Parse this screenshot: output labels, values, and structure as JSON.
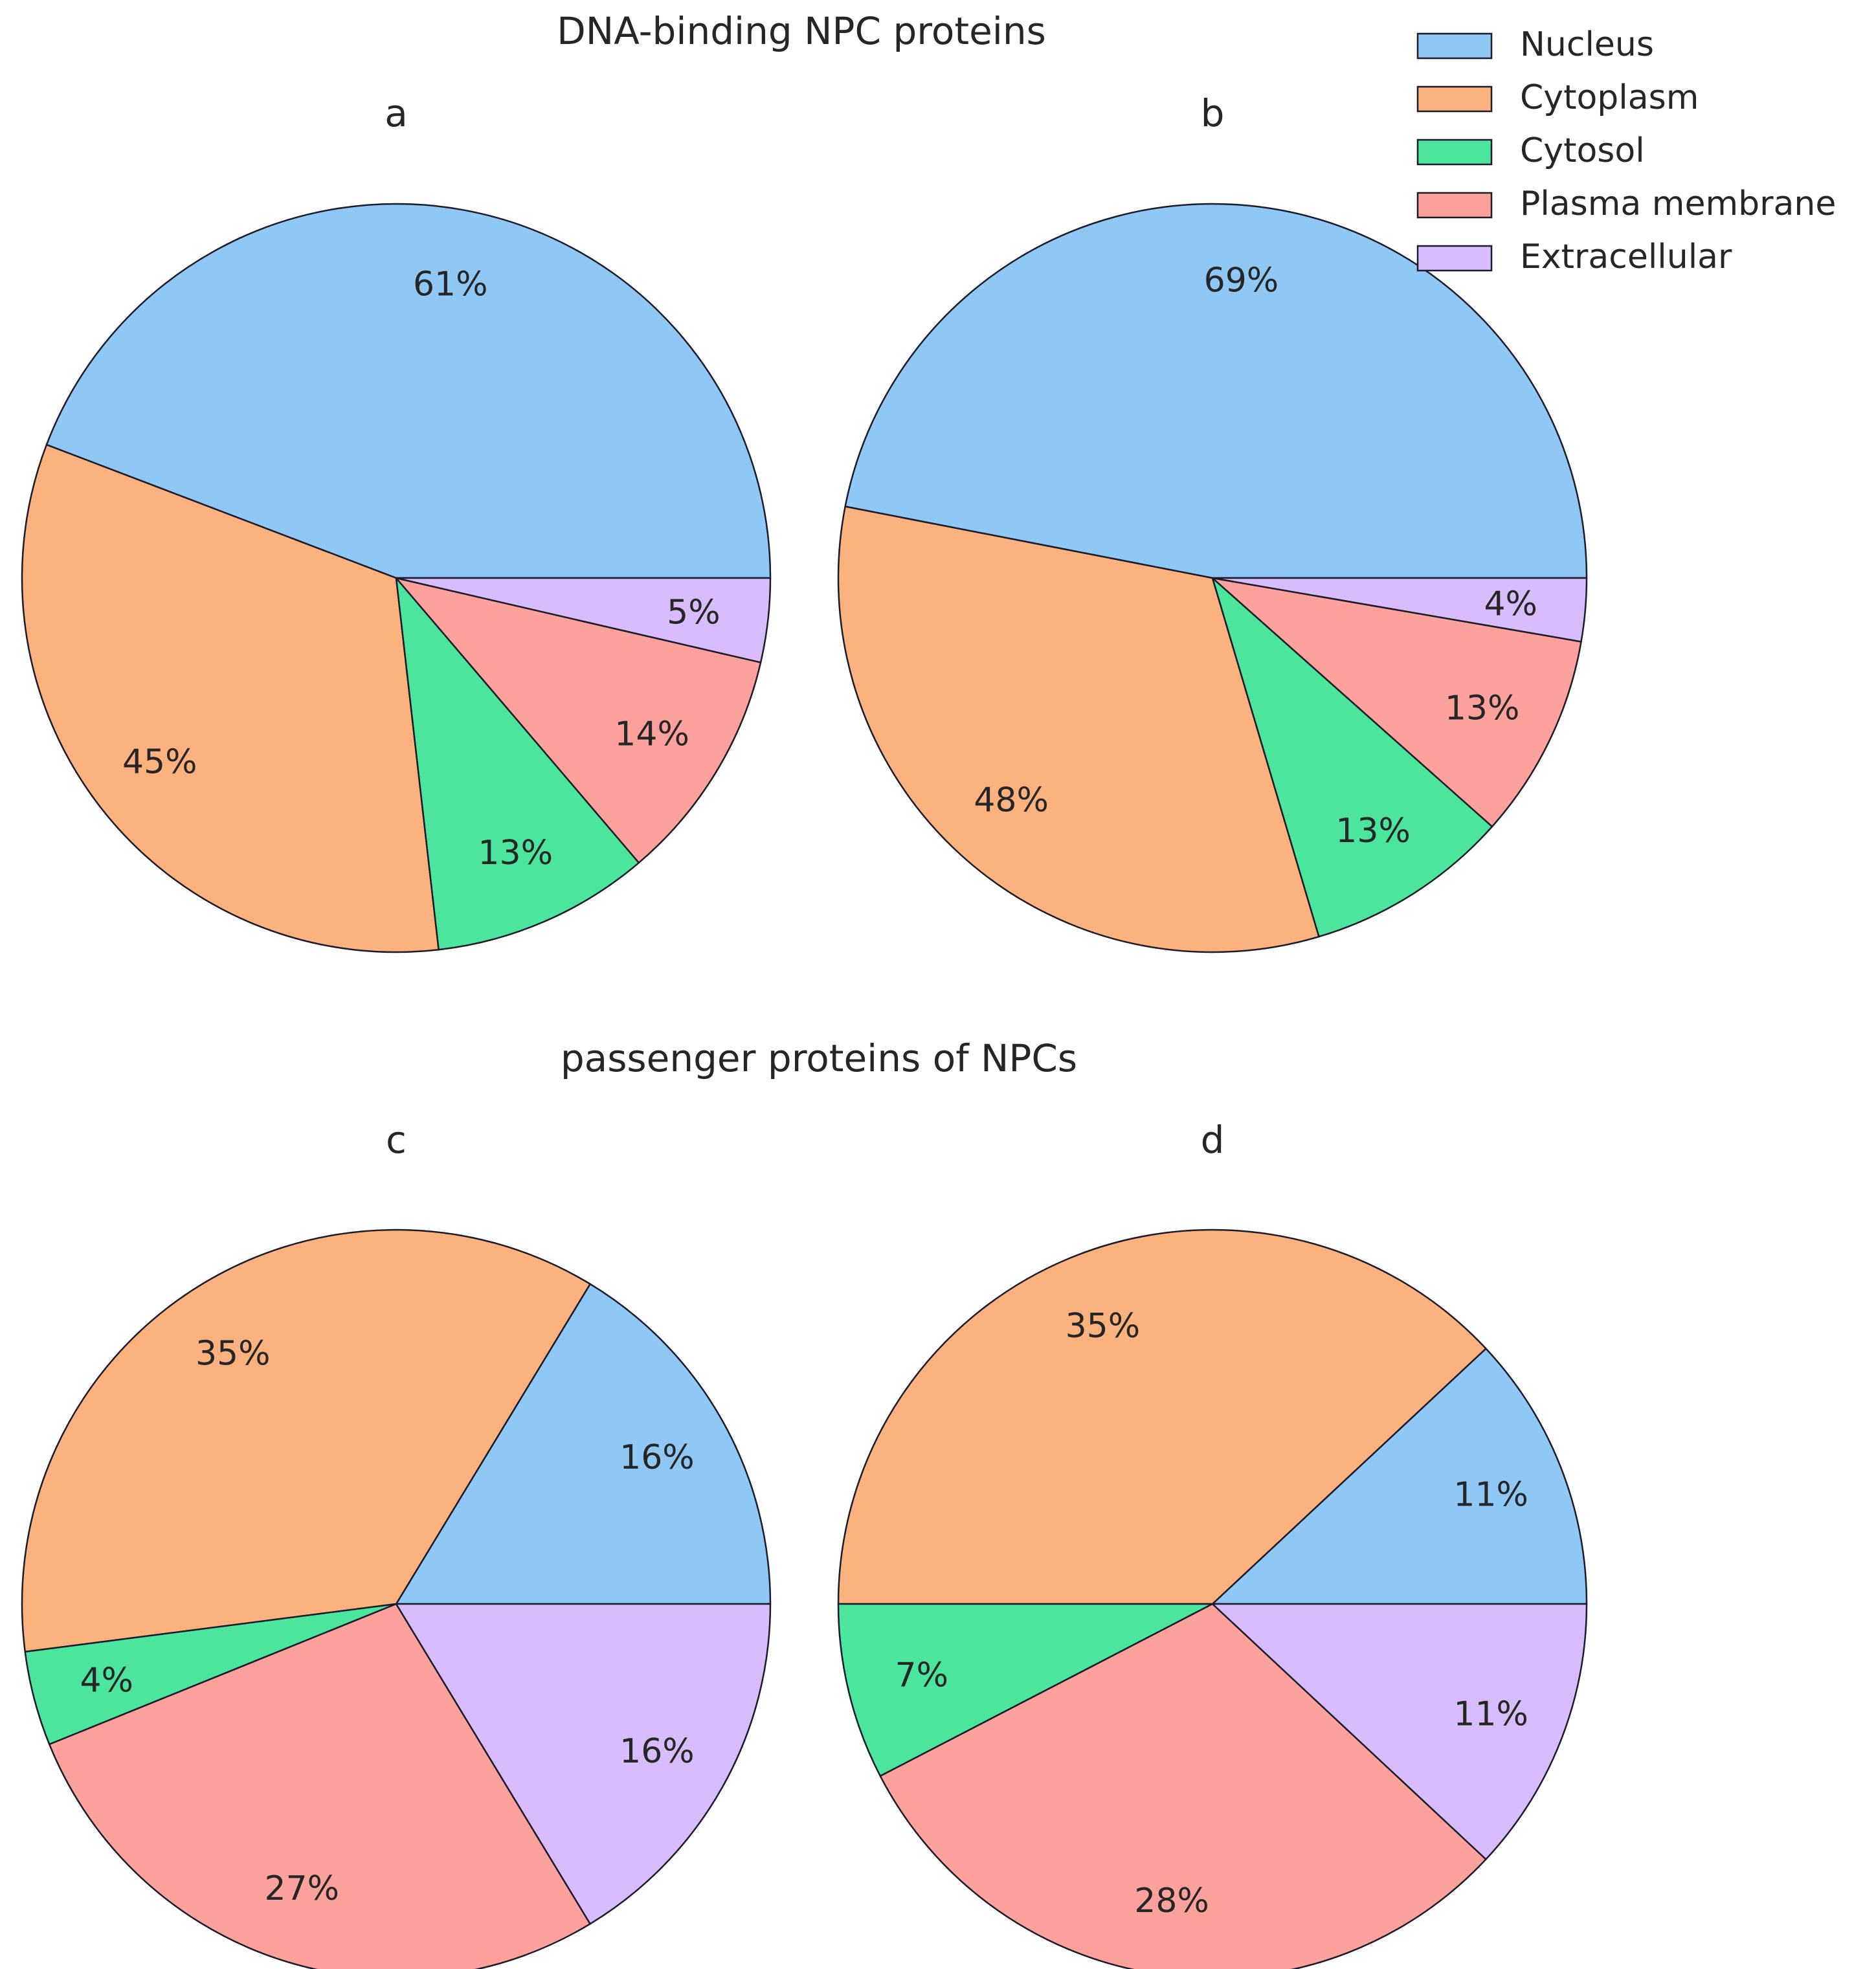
{
  "figure": {
    "top_title": "DNA-binding NPC proteins",
    "bottom_title": "passenger proteins of NPCs"
  },
  "legend": [
    {
      "label": "Nucleus",
      "color": "#90c8f5"
    },
    {
      "label": "Cytoplasm",
      "color": "#fcb27e"
    },
    {
      "label": "Cytosol",
      "color": "#4be59e"
    },
    {
      "label": "Plasma membrane",
      "color": "#fda19d"
    },
    {
      "label": "Extracellular",
      "color": "#d8bcfc"
    }
  ],
  "chart_data": [
    {
      "type": "pie",
      "title": "a",
      "group": "DNA-binding NPC proteins",
      "start_angle_deg": 0,
      "direction": "counterclockwise",
      "slices": [
        {
          "category": "Nucleus",
          "label": "61%",
          "value": 61
        },
        {
          "category": "Cytoplasm",
          "label": "45%",
          "value": 45
        },
        {
          "category": "Cytosol",
          "label": "13%",
          "value": 13
        },
        {
          "category": "Plasma membrane",
          "label": "14%",
          "value": 14
        },
        {
          "category": "Extracellular",
          "label": "5%",
          "value": 5
        }
      ]
    },
    {
      "type": "pie",
      "title": "b",
      "group": "DNA-binding NPC proteins",
      "start_angle_deg": 0,
      "direction": "counterclockwise",
      "slices": [
        {
          "category": "Nucleus",
          "label": "69%",
          "value": 69
        },
        {
          "category": "Cytoplasm",
          "label": "48%",
          "value": 48
        },
        {
          "category": "Cytosol",
          "label": "13%",
          "value": 13
        },
        {
          "category": "Plasma membrane",
          "label": "13%",
          "value": 13
        },
        {
          "category": "Extracellular",
          "label": "4%",
          "value": 4
        }
      ]
    },
    {
      "type": "pie",
      "title": "c",
      "group": "passenger proteins of NPCs",
      "start_angle_deg": 0,
      "direction": "counterclockwise",
      "slices": [
        {
          "category": "Nucleus",
          "label": "16%",
          "value": 16
        },
        {
          "category": "Cytoplasm",
          "label": "35%",
          "value": 35
        },
        {
          "category": "Cytosol",
          "label": "4%",
          "value": 4
        },
        {
          "category": "Plasma membrane",
          "label": "27%",
          "value": 27
        },
        {
          "category": "Extracellular",
          "label": "16%",
          "value": 16
        }
      ]
    },
    {
      "type": "pie",
      "title": "d",
      "group": "passenger proteins of NPCs",
      "start_angle_deg": 0,
      "direction": "counterclockwise",
      "slices": [
        {
          "category": "Nucleus",
          "label": "11%",
          "value": 11
        },
        {
          "category": "Cytoplasm",
          "label": "35%",
          "value": 35
        },
        {
          "category": "Cytosol",
          "label": "7%",
          "value": 7
        },
        {
          "category": "Plasma membrane",
          "label": "28%",
          "value": 28
        },
        {
          "category": "Extracellular",
          "label": "11%",
          "value": 11
        }
      ]
    }
  ]
}
